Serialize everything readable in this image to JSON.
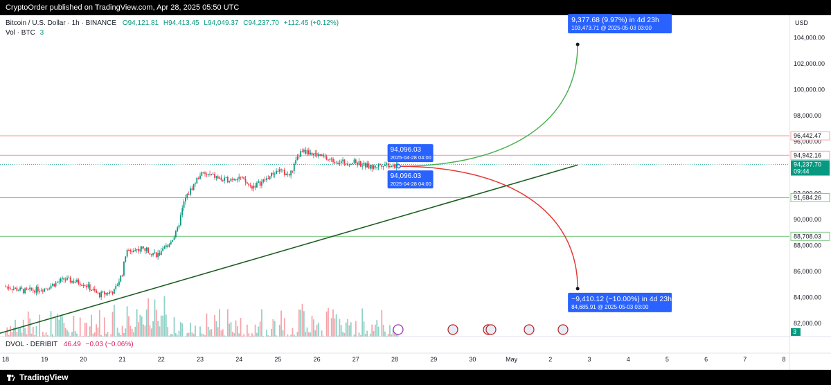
{
  "header": {
    "publisher_text": "CryptoOrder published on TradingView.com, Apr 28, 2025 05:50 UTC"
  },
  "legend": {
    "symbol": "Bitcoin / U.S. Dollar · 1h · BINANCE",
    "open_label": "O",
    "open": "94,121.81",
    "high_label": "H",
    "high": "94,413.45",
    "low_label": "L",
    "low": "94,049.37",
    "close_label": "C",
    "close": "94,237.70",
    "change": "+112.45 (+0.12%)",
    "vol_label": "Vol · BTC",
    "vol_value": "3",
    "dvol_label": "DVOL · DERIBIT",
    "dvol_value": "46.49",
    "dvol_change": "−0.03 (−0.06%)"
  },
  "colors": {
    "up": "#089981",
    "down": "#f23645",
    "accent": "#2962ff",
    "trendline": "#1b5e20",
    "projection_up": "#4caf50",
    "projection_down": "#e53935",
    "hline_red": "#f7a1a8",
    "hline_green": "#81c784",
    "badge_current": "#089981"
  },
  "footer": {
    "brand": "TradingView",
    "logo_icon": "tradingview-logo-icon"
  },
  "chart_data": {
    "type": "candlestick",
    "currency_label": "USD",
    "ylim": [
      81000,
      105400
    ],
    "y_ticks": [
      82000,
      84000,
      86000,
      88000,
      90000,
      92000,
      94000,
      96000,
      98000,
      100000,
      102000,
      104000
    ],
    "y_tick_labels": [
      "82,000.00",
      "84,000.00",
      "86,000.00",
      "88,000.00",
      "90,000.00",
      "92,000.00",
      "94,000.00",
      "96,000.00",
      "98,000.00",
      "100,000.00",
      "102,000.00",
      "104,000.00"
    ],
    "x_tick_labels": [
      "18",
      "19",
      "20",
      "21",
      "22",
      "23",
      "24",
      "25",
      "26",
      "27",
      "28",
      "29",
      "30",
      "May",
      "2",
      "3",
      "4",
      "5",
      "6",
      "7",
      "8"
    ],
    "x_tick_index": [
      0,
      1,
      2,
      3,
      4,
      5,
      6,
      7,
      8,
      9,
      10,
      11,
      12,
      13,
      14,
      15,
      16,
      17,
      18,
      19,
      20
    ],
    "daily_path": [
      {
        "day": 0,
        "price": 84850
      },
      {
        "day": 0.5,
        "price": 84500
      },
      {
        "day": 1,
        "price": 84700
      },
      {
        "day": 1.5,
        "price": 85400
      },
      {
        "day": 2,
        "price": 85100
      },
      {
        "day": 2.4,
        "price": 84200
      },
      {
        "day": 2.8,
        "price": 84500
      },
      {
        "day": 3,
        "price": 85900
      },
      {
        "day": 3.1,
        "price": 87500
      },
      {
        "day": 3.5,
        "price": 87800
      },
      {
        "day": 3.9,
        "price": 87300
      },
      {
        "day": 4,
        "price": 87400
      },
      {
        "day": 4.4,
        "price": 89000
      },
      {
        "day": 4.6,
        "price": 91500
      },
      {
        "day": 5,
        "price": 93500
      },
      {
        "day": 5.3,
        "price": 93400
      },
      {
        "day": 5.6,
        "price": 93000
      },
      {
        "day": 6,
        "price": 93300
      },
      {
        "day": 6.3,
        "price": 92500
      },
      {
        "day": 6.6,
        "price": 92900
      },
      {
        "day": 7,
        "price": 93800
      },
      {
        "day": 7.3,
        "price": 93400
      },
      {
        "day": 7.6,
        "price": 95300
      },
      {
        "day": 8,
        "price": 95000
      },
      {
        "day": 8.3,
        "price": 94600
      },
      {
        "day": 8.7,
        "price": 94400
      },
      {
        "day": 9,
        "price": 94400
      },
      {
        "day": 9.4,
        "price": 94000
      },
      {
        "day": 9.7,
        "price": 94300
      },
      {
        "day": 10.1,
        "price": 94096
      }
    ],
    "horizontal_levels": [
      {
        "price": 96442.47,
        "label": "96,442.47",
        "color": "#f7a1a8"
      },
      {
        "price": 94942.16,
        "label": "94,942.16",
        "color": "#f7a1a8"
      },
      {
        "price": 91684.26,
        "label": "91,684.26",
        "color": "#81c784"
      },
      {
        "price": 88708.03,
        "label": "88,708.03",
        "color": "#81c784"
      }
    ],
    "current_price": {
      "price": 94237.7,
      "label": "94,237.70",
      "countdown": "09:44"
    },
    "volume_scale_label": "3",
    "trendline": {
      "start": {
        "day": -0.15,
        "price": 81250
      },
      "end": {
        "day": 14.7,
        "price": 94200
      }
    },
    "projections": [
      {
        "name": "up",
        "start": {
          "day": 10.1,
          "price": 94096
        },
        "end": {
          "day": 14.7,
          "price": 103473.71
        },
        "label": "9,377.68 (9.97%) in 4d 23h",
        "sublabel": "103,473.71 @ 2025-05-03  03:00"
      },
      {
        "name": "down",
        "start": {
          "day": 10.1,
          "price": 94096
        },
        "end": {
          "day": 14.7,
          "price": 84685.91
        },
        "label": "−9,410.12 (−10.00%) in 4d 23h",
        "sublabel": "84,685.91 @ 2025-05-03  03:00"
      }
    ],
    "anchor_tags": [
      {
        "price_text": "94,096.03",
        "time_text": "2025-04-28 04:00",
        "placement": "above"
      },
      {
        "price_text": "94,096.03",
        "time_text": "2025-04-28 04:00",
        "placement": "below"
      }
    ]
  }
}
